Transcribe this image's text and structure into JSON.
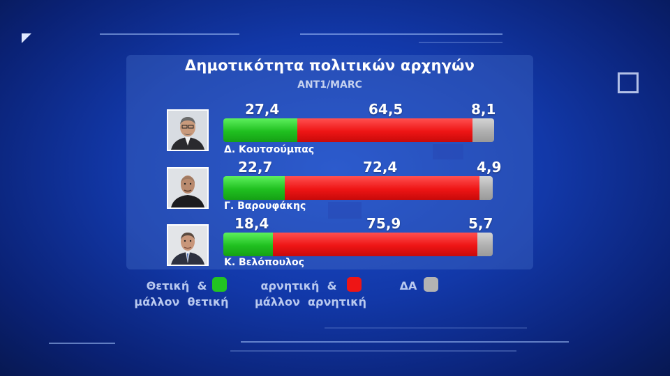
{
  "chart_data": {
    "type": "bar",
    "stacked": true,
    "orientation": "horizontal",
    "title": "Δημοτικότητα πολιτικών αρχηγών",
    "subtitle": "ANT1/MARC",
    "categories": [
      "Δ. Κουτσούμπας",
      "Γ. Βαρουφάκης",
      "Κ. Βελόπουλος"
    ],
    "series": [
      {
        "name": "Θετική & μάλλον θετική",
        "values": [
          27.4,
          22.7,
          18.4
        ],
        "color": "#22c422"
      },
      {
        "name": "αρνητική & μάλλον αρνητική",
        "values": [
          64.5,
          72.4,
          75.9
        ],
        "color": "#ee1515"
      },
      {
        "name": "ΔΑ",
        "values": [
          8.1,
          4.9,
          5.7
        ],
        "color": "#b3b3b3"
      }
    ],
    "value_labels": [
      [
        "27,4",
        "64,5",
        "8,1"
      ],
      [
        "22,7",
        "72,4",
        "4,9"
      ],
      [
        "18,4",
        "75,9",
        "5,7"
      ]
    ],
    "legend": {
      "placement": "bottom",
      "items": [
        {
          "line1": "Θετική  &",
          "line2": "μάλλον  θετική"
        },
        {
          "line1": "αρνητική  &",
          "line2": "μάλλον  αρνητική"
        },
        {
          "line1": "ΔΑ",
          "line2": ""
        }
      ]
    }
  }
}
